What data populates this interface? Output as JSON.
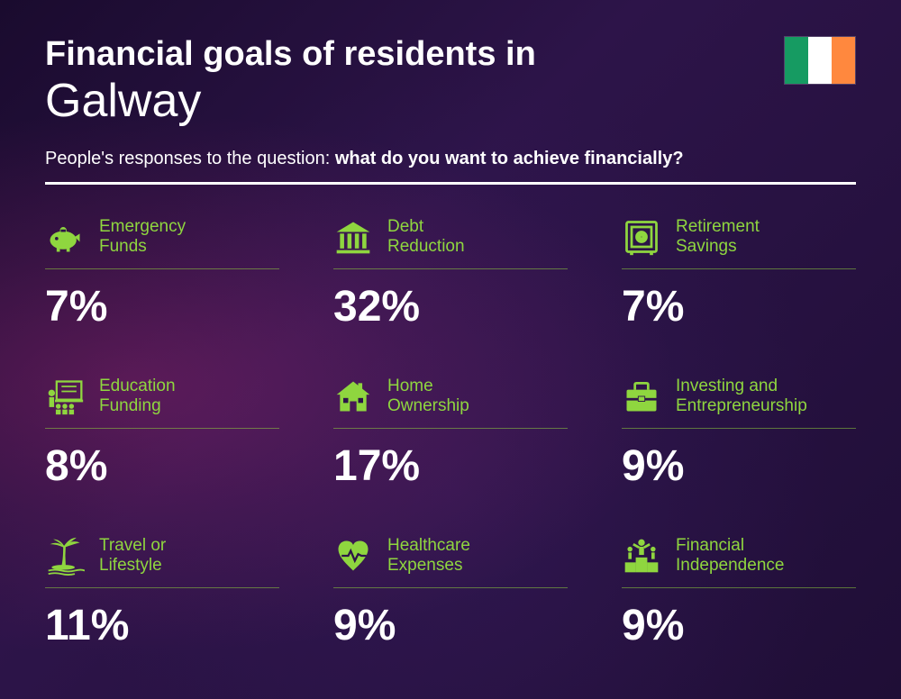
{
  "header": {
    "title_line1": "Financial goals of residents in",
    "title_line2": "Galway",
    "subtitle_prefix": "People's responses to the question: ",
    "subtitle_bold": "what do you want to achieve financially?"
  },
  "flag": {
    "colors": [
      "#169b62",
      "#ffffff",
      "#ff883e"
    ]
  },
  "accent_color": "#8fd63f",
  "items": [
    {
      "label": "Emergency\nFunds",
      "value": "7%",
      "icon": "piggy-bank-icon"
    },
    {
      "label": "Debt\nReduction",
      "value": "32%",
      "icon": "bank-icon"
    },
    {
      "label": "Retirement\nSavings",
      "value": "7%",
      "icon": "safe-icon"
    },
    {
      "label": "Education\nFunding",
      "value": "8%",
      "icon": "education-icon"
    },
    {
      "label": "Home\nOwnership",
      "value": "17%",
      "icon": "house-icon"
    },
    {
      "label": "Investing and\nEntrepreneurship",
      "value": "9%",
      "icon": "briefcase-icon"
    },
    {
      "label": "Travel or\nLifestyle",
      "value": "11%",
      "icon": "palm-icon"
    },
    {
      "label": "Healthcare\nExpenses",
      "value": "9%",
      "icon": "heart-icon"
    },
    {
      "label": "Financial\nIndependence",
      "value": "9%",
      "icon": "podium-icon"
    }
  ]
}
